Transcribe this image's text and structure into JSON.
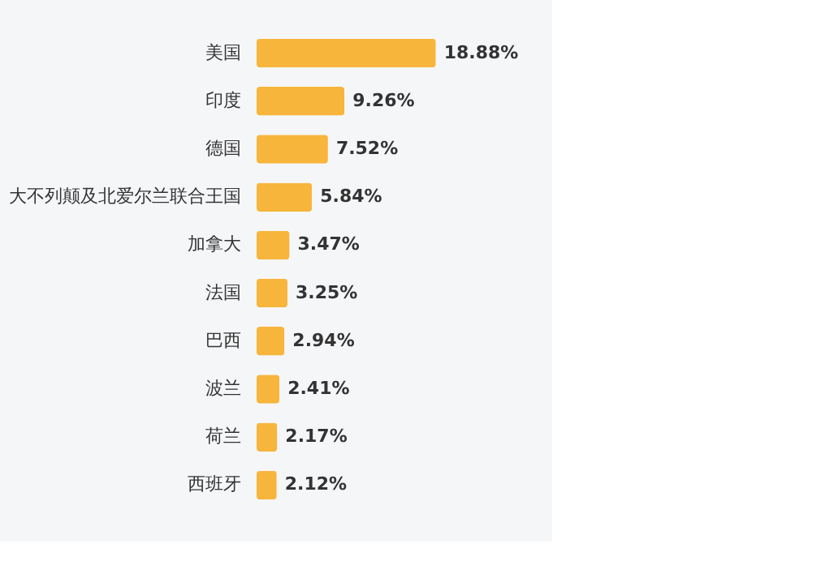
{
  "chart_data": {
    "type": "bar",
    "orientation": "horizontal",
    "categories": [
      "美国",
      "印度",
      "德国",
      "大不列颠及北爱尔兰联合王国",
      "加拿大",
      "法国",
      "巴西",
      "波兰",
      "荷兰",
      "西班牙"
    ],
    "values": [
      18.88,
      9.26,
      7.52,
      5.84,
      3.47,
      3.25,
      2.94,
      2.41,
      2.17,
      2.12
    ],
    "value_labels": [
      "18.88%",
      "9.26%",
      "7.52%",
      "5.84%",
      "3.47%",
      "3.25%",
      "2.94%",
      "2.41%",
      "2.17%",
      "2.12%"
    ],
    "color": "#f7b53b",
    "tick_labels": "y",
    "grid": false
  }
}
